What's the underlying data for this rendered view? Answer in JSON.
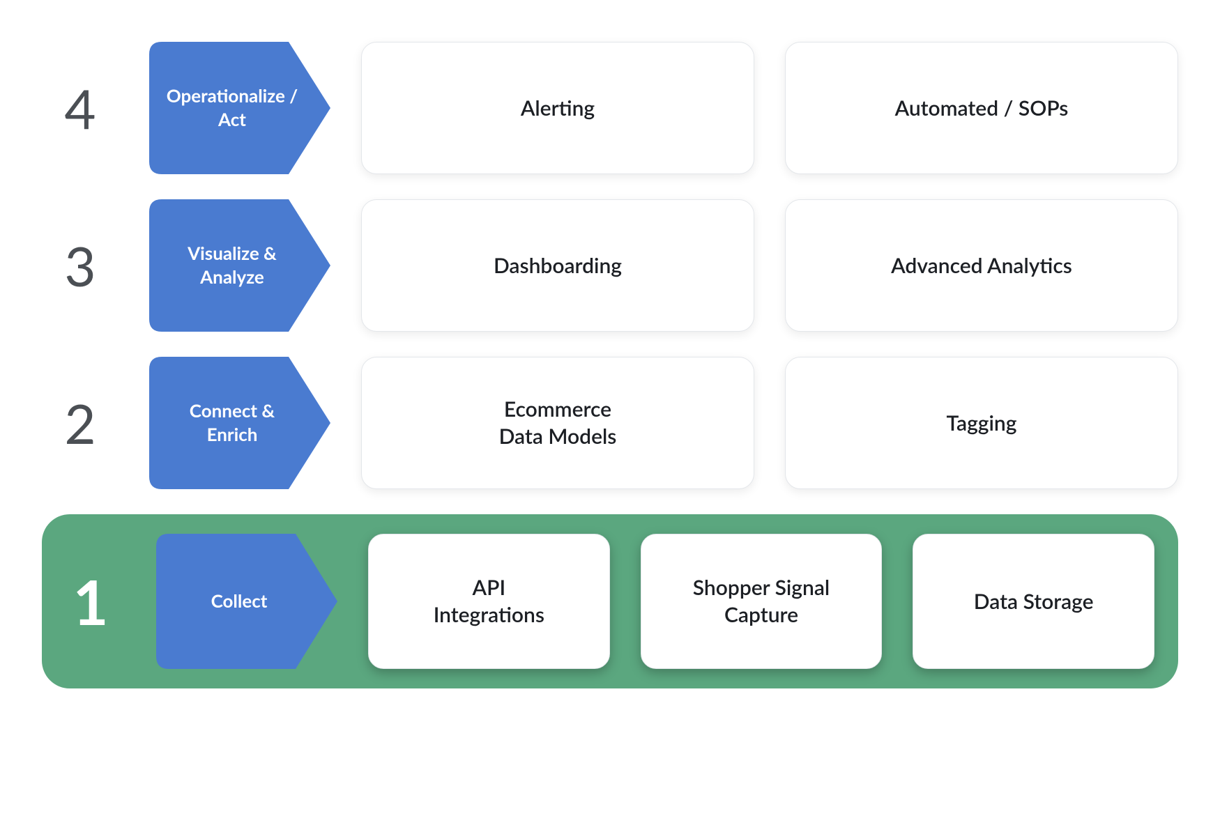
{
  "diagram": {
    "type": "infographic",
    "background_color": "#ffffff",
    "stage_bg_color": "#4a7bd0",
    "stage_text_color": "#ffffff",
    "row_num_color": "#4b4f54",
    "row_num_highlight_color": "#ffffff",
    "card_bg_color": "#ffffff",
    "card_border_color": "#e3e6ea",
    "card_text_color": "#1c1f24",
    "highlight_bg_color": "#5ba77f",
    "row_num_fontsize": 78,
    "row_num_highlight_fontsize": 88,
    "stage_fontsize": 26,
    "card_fontsize": 30,
    "rows": [
      {
        "num": "4",
        "stage_label": "Operationalize / Act",
        "highlighted": false,
        "cards": [
          "Alerting",
          "Automated / SOPs"
        ]
      },
      {
        "num": "3",
        "stage_label": "Visualize & Analyze",
        "highlighted": false,
        "cards": [
          "Dashboarding",
          "Advanced Analytics"
        ]
      },
      {
        "num": "2",
        "stage_label": "Connect & Enrich",
        "highlighted": false,
        "cards": [
          "Ecommerce\nData Models",
          "Tagging"
        ]
      },
      {
        "num": "1",
        "stage_label": "Collect",
        "highlighted": true,
        "cards": [
          "API\nIntegrations",
          "Shopper Signal Capture",
          "Data Storage"
        ]
      }
    ]
  }
}
